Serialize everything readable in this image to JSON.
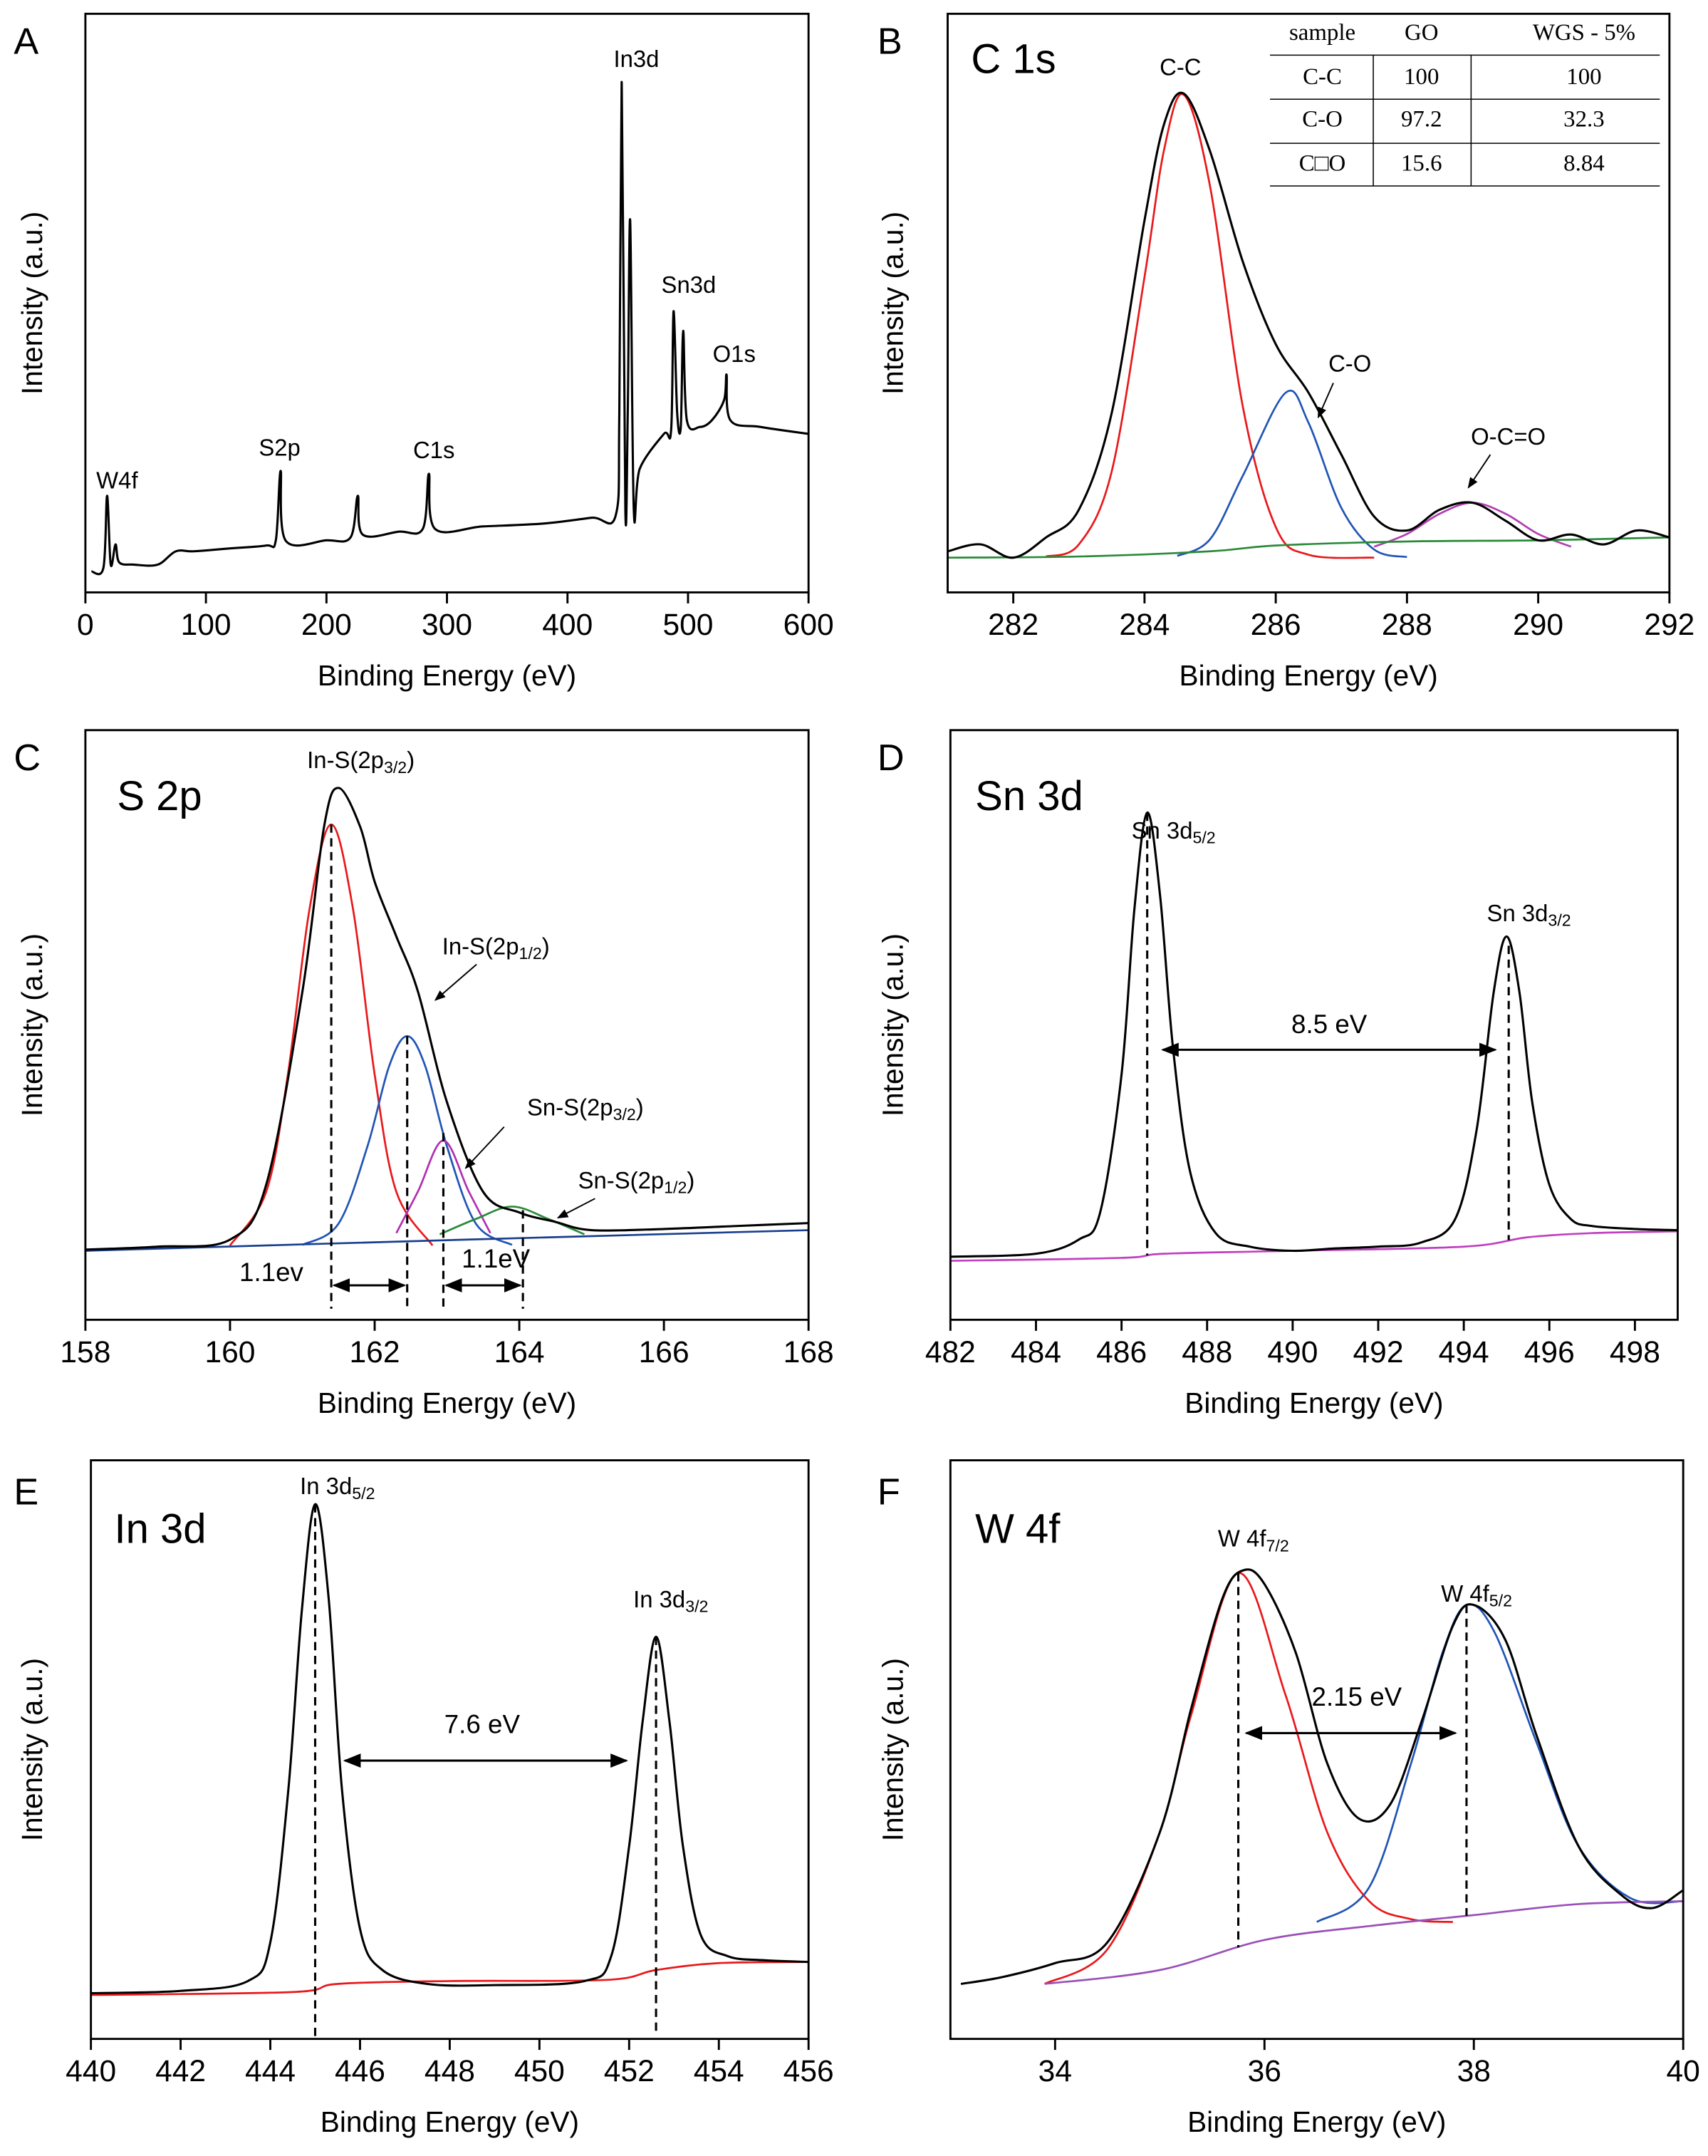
{
  "chart_data": [
    {
      "type": "line",
      "panel_label": "A",
      "x_label": "Binding Energy (eV)",
      "y_label": "Intensity (a.u.)",
      "xlim": [
        0,
        600
      ],
      "xticks": [
        0,
        100,
        200,
        300,
        400,
        500,
        600
      ],
      "ylim": [
        0,
        100
      ],
      "series": [
        {
          "color": "#000000",
          "x": [
            5,
            15,
            18,
            21,
            25,
            28,
            40,
            60,
            75,
            90,
            120,
            150,
            158,
            162,
            166,
            200,
            220,
            226,
            230,
            260,
            280,
            285,
            290,
            330,
            380,
            420,
            440,
            443,
            445,
            448,
            450,
            452,
            455,
            460,
            480,
            486,
            488,
            491,
            494,
            496,
            499,
            510,
            520,
            530,
            532,
            535,
            560,
            600
          ],
          "values": [
            3.6,
            4.3,
            16.7,
            4.8,
            8.3,
            5.2,
            4.8,
            4.8,
            7.1,
            7.1,
            7.6,
            8.1,
            9.0,
            21.0,
            9.0,
            9.0,
            9.5,
            16.7,
            10.0,
            10.5,
            11.0,
            20.5,
            11.0,
            11.4,
            11.9,
            12.9,
            13.3,
            31.0,
            88.1,
            14.3,
            31.0,
            64.3,
            14.3,
            21.4,
            27.4,
            28.1,
            48.6,
            31.0,
            28.6,
            45.2,
            29.8,
            28.6,
            29.8,
            33.3,
            37.6,
            29.8,
            28.6,
            27.4
          ]
        }
      ],
      "annotations": [
        {
          "text": "W4f"
        },
        {
          "text": "S2p"
        },
        {
          "text": "C1s"
        },
        {
          "text": "In3d"
        },
        {
          "text": "Sn3d"
        },
        {
          "text": "O1s"
        }
      ]
    },
    {
      "type": "line",
      "panel_label": "B",
      "title": "C 1s",
      "x_label": "Binding Energy (eV)",
      "y_label": "Intensity (a.u.)",
      "xlim": [
        281,
        292
      ],
      "xticks": [
        282,
        284,
        286,
        288,
        290,
        292
      ],
      "ylim": [
        0,
        100
      ],
      "series": [
        {
          "color": "#000000",
          "x": [
            281,
            281.5,
            282,
            282.5,
            283,
            283.5,
            284,
            284.3,
            284.6,
            285,
            285.5,
            286,
            286.5,
            287,
            287.5,
            288,
            288.5,
            289,
            289.5,
            290,
            290.5,
            291,
            291.5,
            292
          ],
          "values": [
            7.1,
            8.3,
            6.0,
            9.5,
            14.3,
            31.0,
            64.3,
            81.0,
            86.2,
            76.2,
            57.1,
            42.9,
            34.5,
            23.8,
            13.1,
            10.7,
            14.3,
            15.5,
            12.4,
            9.0,
            10.0,
            8.3,
            10.7,
            9.5
          ]
        },
        {
          "color": "#e8191c",
          "x": [
            282.5,
            283,
            283.5,
            284,
            284.3,
            284.6,
            285,
            285.5,
            286,
            286.5,
            287.5
          ],
          "values": [
            6.2,
            8.3,
            20.9,
            54.5,
            76.6,
            86.0,
            70.1,
            32.0,
            11.3,
            6.5,
            6.0
          ]
        },
        {
          "color": "#2055b5",
          "x": [
            284.5,
            285,
            285.5,
            286.15,
            286.5,
            287,
            287.5,
            288
          ],
          "values": [
            6.3,
            9.2,
            20.2,
            34.5,
            29.3,
            14.6,
            7.4,
            6.1
          ]
        },
        {
          "color": "#b040b0",
          "x": [
            287.5,
            288,
            288.5,
            289,
            289.5,
            290,
            290.5
          ],
          "values": [
            7.9,
            10.1,
            13.6,
            15.5,
            13.6,
            10.1,
            7.9
          ]
        },
        {
          "color": "#2a8a3a",
          "x": [
            281,
            283,
            285,
            286,
            288,
            290,
            292
          ],
          "values": [
            6.0,
            6.2,
            7.1,
            8.1,
            8.8,
            9.0,
            9.5
          ]
        }
      ],
      "annotations": [
        {
          "text": "C-C"
        },
        {
          "text": "C-O"
        },
        {
          "text": "O-C=O"
        }
      ],
      "table": {
        "columns": [
          "sample",
          "GO",
          "WGS - 5%"
        ],
        "rows": [
          [
            "C-C",
            100,
            100
          ],
          [
            "C-O",
            97.2,
            32.3
          ],
          [
            "C□O",
            15.6,
            8.84
          ]
        ]
      }
    },
    {
      "type": "line",
      "panel_label": "C",
      "title": "S 2p",
      "x_label": "Binding Energy (eV)",
      "y_label": "Intensity (a.u.)",
      "xlim": [
        158,
        168
      ],
      "xticks": [
        158,
        160,
        162,
        164,
        166,
        168
      ],
      "ylim": [
        0,
        100
      ],
      "series": [
        {
          "color": "#000000",
          "x": [
            158,
            159,
            160,
            160.5,
            161,
            161.3,
            161.5,
            161.8,
            162,
            162.3,
            162.6,
            163,
            163.5,
            164,
            164.5,
            165,
            166,
            167,
            168
          ],
          "values": [
            11.9,
            12.4,
            13.6,
            22.9,
            55.6,
            83.6,
            90.2,
            83.6,
            74.3,
            65.0,
            55.6,
            36.9,
            21.7,
            18.2,
            16.6,
            15.2,
            15.4,
            15.9,
            16.4
          ]
        },
        {
          "color": "#e8191c",
          "x": [
            160,
            160.5,
            160.8,
            161.1,
            161.4,
            161.7,
            162,
            162.3,
            162.8
          ],
          "values": [
            12.6,
            21.7,
            41.6,
            69.7,
            84.0,
            69.7,
            41.6,
            21.7,
            12.6
          ]
        },
        {
          "color": "#2055b5",
          "x": [
            161,
            161.5,
            161.9,
            162.2,
            162.45,
            162.7,
            163,
            163.4,
            163.9
          ],
          "values": [
            12.7,
            16.3,
            29.4,
            43.0,
            48.1,
            43.0,
            29.4,
            16.3,
            12.7
          ]
        },
        {
          "color": "#b030b0",
          "x": [
            162.3,
            162.6,
            162.95,
            163.3,
            163.6
          ],
          "values": [
            14.7,
            21.8,
            30.4,
            21.8,
            14.7
          ]
        },
        {
          "color": "#2a8a3a",
          "x": [
            162.9,
            163.4,
            163.9,
            164.4,
            164.9
          ],
          "values": [
            14.5,
            17.1,
            19.2,
            17.1,
            14.5
          ]
        },
        {
          "color": "#1a3f8f",
          "x": [
            158,
            163,
            168
          ],
          "values": [
            11.7,
            13.5,
            15.2
          ]
        }
      ],
      "annotations": [
        {
          "text": "In-S(2p",
          "sub": "3/2",
          "tail": ")"
        },
        {
          "text": "In-S(2p",
          "sub": "1/2",
          "tail": ")"
        },
        {
          "text": "Sn-S(2p",
          "sub": "3/2",
          "tail": ")"
        },
        {
          "text": "Sn-S(2p",
          "sub": "1/2",
          "tail": ")"
        }
      ],
      "peak_lines": [
        161.4,
        162.45,
        162.95,
        164.05
      ],
      "arrows": [
        {
          "x": [
            161.4,
            162.45
          ],
          "label": "1.1ev"
        },
        {
          "x": [
            162.95,
            164.05
          ],
          "label": "1.1eV"
        }
      ]
    },
    {
      "type": "line",
      "panel_label": "D",
      "title": "Sn 3d",
      "x_label": "Binding Energy (eV)",
      "y_label": "Intensity (a.u.)",
      "xlim": [
        482,
        499
      ],
      "xticks": [
        482,
        484,
        486,
        488,
        490,
        492,
        494,
        496,
        498
      ],
      "ylim": [
        0,
        100
      ],
      "series": [
        {
          "color": "#000000",
          "x": [
            482,
            484,
            485,
            485.5,
            486,
            486.3,
            486.6,
            486.9,
            487.2,
            487.6,
            488.2,
            489,
            490,
            491,
            492,
            493,
            493.8,
            494.3,
            494.7,
            495,
            495.3,
            495.6,
            496,
            496.5,
            497,
            498,
            499
          ],
          "values": [
            10.7,
            11.2,
            13.6,
            18.2,
            41.6,
            69.6,
            86.0,
            72.0,
            46.3,
            25.2,
            14.7,
            12.4,
            11.7,
            12.1,
            12.4,
            13.1,
            17.1,
            32.2,
            55.6,
            65.0,
            55.6,
            36.9,
            22.9,
            17.1,
            15.9,
            15.4,
            15.2
          ]
        },
        {
          "color": "#c040c0",
          "x": [
            482,
            486,
            487,
            490,
            494,
            495.5,
            497,
            499
          ],
          "values": [
            10.0,
            10.5,
            11.2,
            11.7,
            12.4,
            14.0,
            14.7,
            15.0
          ]
        }
      ],
      "annotations": [
        {
          "text": "Sn 3d",
          "sub": "5/2"
        },
        {
          "text": "Sn 3d",
          "sub": "3/2"
        }
      ],
      "peak_lines": [
        486.6,
        495.05
      ],
      "arrows": [
        {
          "x": [
            486.9,
            494.8
          ],
          "label": "8.5 eV"
        }
      ]
    },
    {
      "type": "line",
      "panel_label": "E",
      "title": "In 3d",
      "x_label": "Binding Energy (eV)",
      "y_label": "Intensity (a.u.)",
      "xlim": [
        440,
        456
      ],
      "xticks": [
        440,
        442,
        444,
        446,
        448,
        450,
        452,
        454,
        456
      ],
      "ylim": [
        0,
        100
      ],
      "series": [
        {
          "color": "#000000",
          "x": [
            440,
            442,
            443.5,
            444,
            444.4,
            444.7,
            445,
            445.3,
            445.6,
            446,
            446.5,
            447.5,
            449,
            451,
            451.6,
            452,
            452.3,
            452.6,
            452.9,
            453.2,
            453.6,
            454.2,
            455,
            456
          ],
          "values": [
            7.9,
            8.3,
            10.0,
            16.7,
            42.9,
            73.8,
            92.4,
            76.2,
            42.9,
            19.0,
            11.9,
            9.5,
            9.3,
            10.0,
            14.3,
            33.3,
            54.8,
            69.5,
            54.8,
            33.3,
            17.9,
            14.3,
            13.6,
            13.3
          ]
        },
        {
          "color": "#e8191c",
          "x": [
            440,
            444.5,
            445.5,
            448,
            451.5,
            452.6,
            454,
            456
          ],
          "values": [
            7.6,
            8.1,
            9.5,
            10.0,
            10.2,
            11.9,
            13.1,
            13.3
          ]
        }
      ],
      "annotations": [
        {
          "text": "In 3d",
          "sub": "5/2"
        },
        {
          "text": "In 3d",
          "sub": "3/2"
        }
      ],
      "peak_lines": [
        445.0,
        452.6
      ],
      "arrows": [
        {
          "x": [
            445.6,
            452.0
          ],
          "label": "7.6 eV"
        }
      ]
    },
    {
      "type": "line",
      "panel_label": "F",
      "title": "W 4f",
      "x_label": "Binding Energy (eV)",
      "y_label": "Intensity (a.u.)",
      "xlim": [
        33,
        40
      ],
      "xticks": [
        34,
        36,
        38,
        40
      ],
      "ylim": [
        0,
        100
      ],
      "series": [
        {
          "color": "#000000",
          "x": [
            33.1,
            33.5,
            34,
            34.5,
            35,
            35.3,
            35.6,
            35.8,
            36,
            36.3,
            36.6,
            36.9,
            37.2,
            37.5,
            37.8,
            38,
            38.3,
            38.6,
            39,
            39.4,
            39.7,
            40
          ],
          "values": [
            9.5,
            10.7,
            13.1,
            16.7,
            35.7,
            57.1,
            76.2,
            81.0,
            78.6,
            66.7,
            47.6,
            38.1,
            40.5,
            54.8,
            71.4,
            75.0,
            69.0,
            52.4,
            33.3,
            25.0,
            22.6,
            25.7
          ]
        },
        {
          "color": "#e8191c",
          "x": [
            33.9,
            34.5,
            35,
            35.3,
            35.75,
            36.2,
            36.6,
            37,
            37.4,
            37.8
          ],
          "values": [
            9.5,
            15.5,
            35.7,
            56.0,
            80.5,
            59.5,
            35.7,
            23.8,
            20.7,
            20.2
          ]
        },
        {
          "color": "#2055b5",
          "x": [
            36.5,
            37,
            37.4,
            37.7,
            37.93,
            38.2,
            38.6,
            39,
            39.5,
            40
          ],
          "values": [
            20.2,
            26.2,
            47.6,
            66.7,
            75.0,
            70.2,
            51.2,
            33.3,
            24.3,
            23.8
          ]
        },
        {
          "color": "#9a50b8",
          "x": [
            33.9,
            35,
            36,
            37,
            38,
            39,
            40
          ],
          "values": [
            9.5,
            11.9,
            17.1,
            19.5,
            21.4,
            23.3,
            23.8
          ]
        }
      ],
      "annotations": [
        {
          "text": "W 4f",
          "sub": "7/2"
        },
        {
          "text": "W 4f",
          "sub": "5/2"
        }
      ],
      "peak_lines": [
        35.75,
        37.93
      ],
      "arrows": [
        {
          "x": [
            35.8,
            37.85
          ],
          "label": "2.15 eV"
        }
      ]
    }
  ]
}
